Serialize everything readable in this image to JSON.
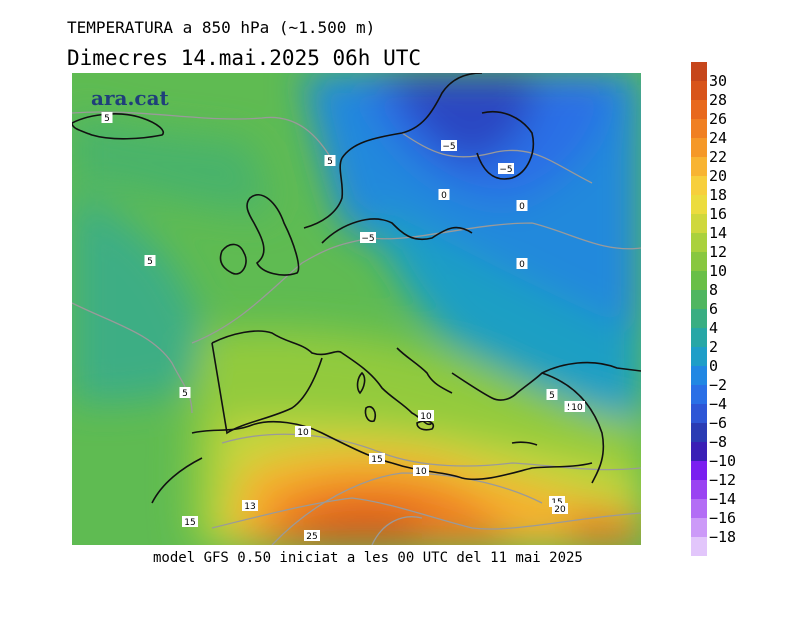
{
  "title": "TEMPERATURA a 850 hPa (~1.500 m)",
  "subtitle": "Dimecres  14.mai.2025 06h UTC",
  "logo": "ara.cat",
  "footer": "model GFS 0.50 iniciat a les 00 UTC del 11 mai 2025",
  "colorbar": {
    "unit": "",
    "levels": [
      {
        "label": "30",
        "color": "#c6461b"
      },
      {
        "label": "28",
        "color": "#d8541b"
      },
      {
        "label": "26",
        "color": "#e8691d"
      },
      {
        "label": "24",
        "color": "#f07f22"
      },
      {
        "label": "22",
        "color": "#f59828"
      },
      {
        "label": "20",
        "color": "#f8b432"
      },
      {
        "label": "18",
        "color": "#f7cf3c"
      },
      {
        "label": "16",
        "color": "#ecdc3e"
      },
      {
        "label": "14",
        "color": "#cfd83c"
      },
      {
        "label": "12",
        "color": "#aad13c"
      },
      {
        "label": "10",
        "color": "#88c73f"
      },
      {
        "label": "8",
        "color": "#69bf47"
      },
      {
        "label": "6",
        "color": "#4fb660"
      },
      {
        "label": "4",
        "color": "#39ae82"
      },
      {
        "label": "2",
        "color": "#27a7a6"
      },
      {
        "label": "0",
        "color": "#1e9ec8"
      },
      {
        "label": "−2",
        "color": "#2187e3"
      },
      {
        "label": "−4",
        "color": "#2a6fe6"
      },
      {
        "label": "−6",
        "color": "#2e56d6"
      },
      {
        "label": "−8",
        "color": "#2a3bb4"
      },
      {
        "label": "−10",
        "color": "#3a1fb6"
      },
      {
        "label": "−12",
        "color": "#7a1ff0"
      },
      {
        "label": "−14",
        "color": "#9a43f2"
      },
      {
        "label": "−16",
        "color": "#b36df5"
      },
      {
        "label": "−18",
        "color": "#cc9af8"
      },
      {
        "label": "",
        "color": "#e2c6fb"
      }
    ]
  },
  "contour_labels": [
    "5",
    "5",
    "5",
    "−5",
    "−5",
    "0",
    "0",
    "0",
    "−5",
    "5",
    "5",
    "5",
    "10",
    "10",
    "10",
    "10",
    "13",
    "15",
    "15",
    "15",
    "20",
    "20",
    "25"
  ]
}
